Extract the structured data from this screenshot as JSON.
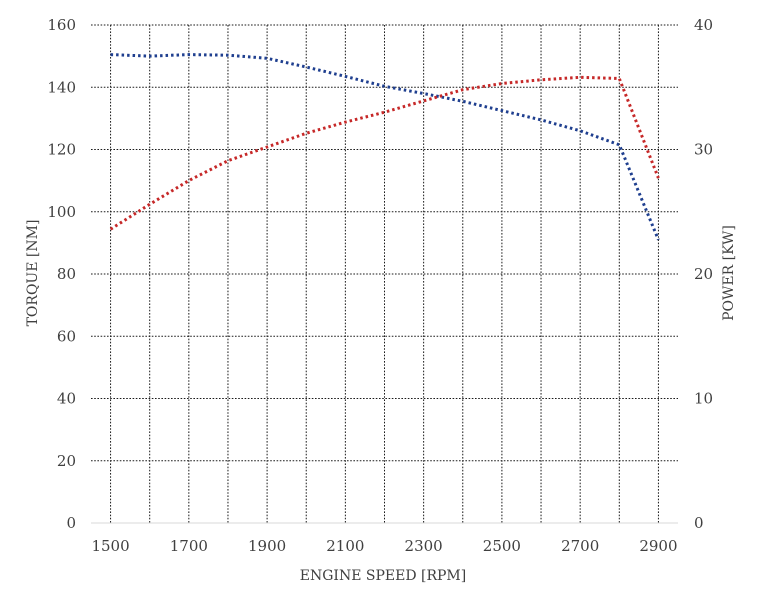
{
  "chart_data": {
    "type": "line",
    "title": "",
    "xlabel": "ENGINE SPEED [RPM]",
    "ylabel_left": "TORQUE [NM]",
    "ylabel_right": "POWER [KW]",
    "xlim": [
      1450,
      2950
    ],
    "ylim_left": [
      0,
      160
    ],
    "ylim_right": [
      0,
      40
    ],
    "x_ticks": [
      1500,
      1700,
      1900,
      2100,
      2300,
      2500,
      2700,
      2900
    ],
    "x_tick_labels": [
      "1500",
      "1700",
      "1900",
      "2100",
      "2300",
      "2500",
      "2700",
      "2900"
    ],
    "y_left_ticks": [
      0,
      20,
      40,
      60,
      80,
      100,
      120,
      140,
      160
    ],
    "y_left_tick_labels": [
      "0",
      "20",
      "40",
      "60",
      "80",
      "100",
      "120",
      "140",
      "160"
    ],
    "y_right_ticks": [
      0,
      10,
      20,
      30,
      40
    ],
    "y_right_tick_labels": [
      "0",
      "10",
      "20",
      "30",
      "40"
    ],
    "grid": true,
    "legend": "none",
    "series": [
      {
        "axis": "left",
        "color": "#1f3f8f",
        "style": "dotted",
        "x": [
          1500,
          1600,
          1700,
          1800,
          1900,
          2000,
          2100,
          2200,
          2300,
          2400,
          2500,
          2600,
          2700,
          2800,
          2900
        ],
        "y": [
          150.5,
          150,
          150.5,
          150.3,
          149.3,
          146.5,
          143.5,
          140.3,
          138,
          135.5,
          132.5,
          129.5,
          126,
          121.5,
          91
        ]
      },
      {
        "axis": "right",
        "color": "#c62828",
        "style": "dotted",
        "x": [
          1500,
          1600,
          1700,
          1800,
          1900,
          2000,
          2100,
          2200,
          2300,
          2400,
          2500,
          2600,
          2700,
          2800,
          2900
        ],
        "y": [
          23.6,
          25.6,
          27.5,
          29.1,
          30.2,
          31.3,
          32.2,
          33.0,
          33.9,
          34.8,
          35.3,
          35.6,
          35.8,
          35.7,
          27.7
        ]
      }
    ]
  }
}
